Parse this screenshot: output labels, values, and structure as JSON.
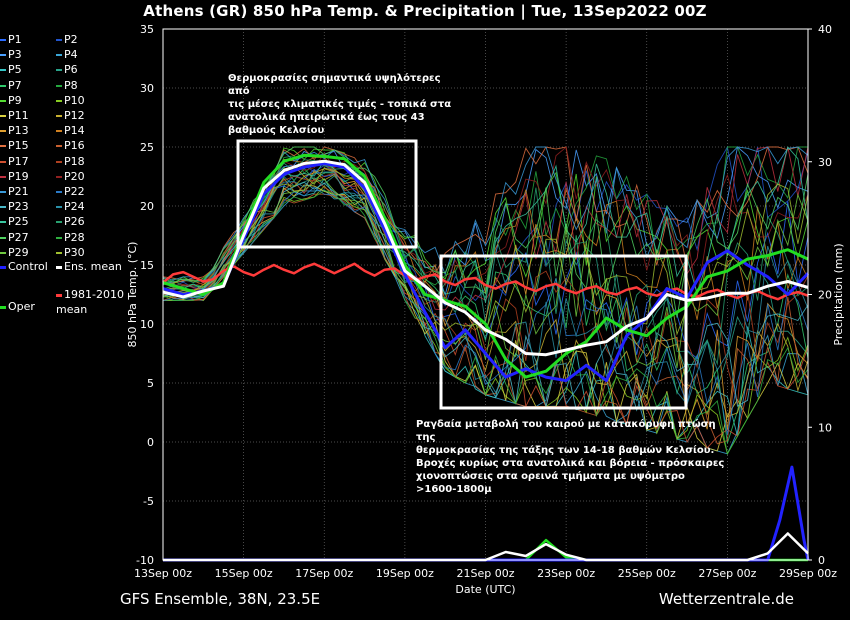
{
  "title": "Athens  (GR)  850 hPa Temp. & Precipitation | Tue, 13Sep2022 00Z",
  "footer_left": "GFS Ensemble, 38N, 23.5E",
  "footer_right": "Wetterzentrale.de",
  "annotations": [
    "Θερμοκρασίες σημαντικά υψηλότερες από\nτις μέσες κλιματικές τιμές - τοπικά στα\nανατολικά ηπειρωτικά έως τους 43\nβαθμούς Κελσίου",
    "Ραγδαία μεταβολή του καιρού με κατακόρυφη πτώση της\nθερμοκρασίας της τάξης των 14-18 βαθμών Κελσίου.\nΒροχές κυρίως στα ανατολικά και βόρεια - πρόσκαιρες\nχιονοπτώσεις στα ορεινά τμήματα με υψόμετρο\n>1600-1800μ"
  ],
  "legend": {
    "members": [
      "P1",
      "P2",
      "P3",
      "P4",
      "P5",
      "P6",
      "P7",
      "P8",
      "P9",
      "P10",
      "P11",
      "P12",
      "P13",
      "P14",
      "P15",
      "P16",
      "P17",
      "P18",
      "P19",
      "P20",
      "P21",
      "P22",
      "P23",
      "P24",
      "P25",
      "P26",
      "P27",
      "P28",
      "P29",
      "P30"
    ],
    "control": "Control",
    "ens_mean": "Ens. mean",
    "climate": "1981-2010\nmean",
    "oper": "Oper"
  },
  "colors": {
    "control": "#2222ff",
    "ens_mean": "#ffffff",
    "climate": "#ff3b3b",
    "oper": "#22dd22",
    "members": [
      "#2b6cff",
      "#2255cc",
      "#4aa0ff",
      "#3aa6d6",
      "#36c6c6",
      "#29a38a",
      "#2fc96b",
      "#25a83f",
      "#55dd33",
      "#88cc22",
      "#d8d040",
      "#c8b030",
      "#e0a030",
      "#d08020",
      "#e07040",
      "#c86030",
      "#d05030",
      "#b04020",
      "#c03040",
      "#902020",
      "#3a9ad8",
      "#2a7ac8",
      "#4ab8c8",
      "#2a90a8",
      "#3ac8a0",
      "#28a070",
      "#50d060",
      "#30b040",
      "#70c840",
      "#a0c030"
    ]
  },
  "chart_data": {
    "type": "line",
    "x_labels": [
      "13Sep 00z",
      "15Sep 00z",
      "17Sep 00z",
      "19Sep 00z",
      "21Sep 00z",
      "23Sep 00z",
      "25Sep 00z",
      "27Sep 00z",
      "29Sep 00z"
    ],
    "xlabel": "Date (UTC)",
    "ylabel_left": "850 hPa Temp. (°C)",
    "ylabel_right": "Precipitation (mm)",
    "ylim_left": [
      -10,
      35
    ],
    "ylim_right": [
      0,
      40
    ],
    "yticks_left": [
      -10,
      -5,
      0,
      5,
      10,
      15,
      20,
      25,
      30,
      35
    ],
    "yticks_right": [
      0,
      10,
      20,
      30,
      40
    ],
    "x_day_range": [
      0,
      16
    ],
    "grid": true,
    "temp": {
      "ens_mean": [
        [
          0,
          12.7
        ],
        [
          0.5,
          12.3
        ],
        [
          1,
          12.8
        ],
        [
          1.5,
          13.2
        ],
        [
          2,
          17.5
        ],
        [
          2.5,
          21.5
        ],
        [
          3,
          23
        ],
        [
          3.5,
          23.6
        ],
        [
          4,
          23.8
        ],
        [
          4.5,
          23.5
        ],
        [
          5,
          22
        ],
        [
          5.5,
          18.5
        ],
        [
          6,
          14.5
        ],
        [
          6.5,
          13.2
        ],
        [
          7,
          11.8
        ],
        [
          7.5,
          11
        ],
        [
          8,
          9.5
        ],
        [
          8.5,
          8.7
        ],
        [
          9,
          7.5
        ],
        [
          9.5,
          7.4
        ],
        [
          10,
          7.8
        ],
        [
          10.5,
          8.2
        ],
        [
          11,
          8.5
        ],
        [
          11.5,
          9.8
        ],
        [
          12,
          10.5
        ],
        [
          12.5,
          12.5
        ],
        [
          13,
          12
        ],
        [
          13.5,
          12.2
        ],
        [
          14,
          12.6
        ],
        [
          14.5,
          12.6
        ],
        [
          15,
          13.2
        ],
        [
          15.5,
          13.6
        ],
        [
          16,
          13.1
        ]
      ],
      "control": [
        [
          0,
          13
        ],
        [
          0.5,
          12.5
        ],
        [
          1,
          12.8
        ],
        [
          1.5,
          13.3
        ],
        [
          2,
          17.2
        ],
        [
          2.5,
          21
        ],
        [
          3,
          22.7
        ],
        [
          3.5,
          23.3
        ],
        [
          4,
          23.6
        ],
        [
          4.5,
          23.3
        ],
        [
          5,
          21.5
        ],
        [
          5.5,
          18
        ],
        [
          6,
          14.2
        ],
        [
          6.5,
          11
        ],
        [
          7,
          8
        ],
        [
          7.5,
          9.5
        ],
        [
          8,
          7.5
        ],
        [
          8.5,
          5.5
        ],
        [
          9,
          6.2
        ],
        [
          9.5,
          5.5
        ],
        [
          10,
          5.2
        ],
        [
          10.5,
          6.5
        ],
        [
          11,
          5.2
        ],
        [
          11.5,
          9
        ],
        [
          12,
          10.5
        ],
        [
          12.5,
          13
        ],
        [
          13,
          12.2
        ],
        [
          13.5,
          15.2
        ],
        [
          14,
          16.2
        ],
        [
          14.5,
          15
        ],
        [
          15,
          14
        ],
        [
          15.5,
          12.5
        ],
        [
          16,
          14.3
        ]
      ],
      "oper": [
        [
          0,
          13.5
        ],
        [
          0.5,
          13
        ],
        [
          1,
          12.5
        ],
        [
          1.5,
          13.5
        ],
        [
          2,
          17.8
        ],
        [
          2.5,
          22
        ],
        [
          3,
          23.8
        ],
        [
          3.5,
          24.3
        ],
        [
          4,
          24.2
        ],
        [
          4.5,
          24
        ],
        [
          5,
          22.5
        ],
        [
          5.5,
          19
        ],
        [
          6,
          15
        ],
        [
          6.5,
          12.5
        ],
        [
          7,
          12
        ],
        [
          7.5,
          11.5
        ],
        [
          8,
          10
        ],
        [
          8.5,
          7
        ],
        [
          9,
          5.5
        ],
        [
          9.5,
          6
        ],
        [
          10,
          7.5
        ],
        [
          10.5,
          8.5
        ],
        [
          11,
          10.5
        ],
        [
          11.5,
          9.5
        ],
        [
          12,
          9
        ],
        [
          12.5,
          10.5
        ],
        [
          13,
          11.5
        ],
        [
          13.5,
          14
        ],
        [
          14,
          14.5
        ],
        [
          14.5,
          15.5
        ],
        [
          15,
          15.8
        ],
        [
          15.5,
          16.3
        ],
        [
          16,
          15.5
        ]
      ],
      "climate": [
        [
          0,
          13.5
        ],
        [
          0.25,
          14.2
        ],
        [
          0.5,
          14.4
        ],
        [
          0.75,
          14
        ],
        [
          1,
          13.6
        ],
        [
          1.25,
          13.8
        ],
        [
          1.5,
          14.5
        ],
        [
          1.75,
          14.9
        ],
        [
          2,
          14.4
        ],
        [
          2.25,
          14.1
        ],
        [
          2.5,
          14.6
        ],
        [
          2.75,
          15
        ],
        [
          3,
          14.6
        ],
        [
          3.25,
          14.3
        ],
        [
          3.5,
          14.8
        ],
        [
          3.75,
          15.1
        ],
        [
          4,
          14.7
        ],
        [
          4.25,
          14.3
        ],
        [
          4.5,
          14.7
        ],
        [
          4.75,
          15.1
        ],
        [
          5,
          14.5
        ],
        [
          5.25,
          14.1
        ],
        [
          5.5,
          14.6
        ],
        [
          5.75,
          14.7
        ],
        [
          6,
          14.1
        ],
        [
          6.25,
          13.7
        ],
        [
          6.5,
          14
        ],
        [
          6.75,
          14.2
        ],
        [
          7,
          13.6
        ],
        [
          7.25,
          13.3
        ],
        [
          7.5,
          13.8
        ],
        [
          7.75,
          13.9
        ],
        [
          8,
          13.3
        ],
        [
          8.25,
          13
        ],
        [
          8.5,
          13.4
        ],
        [
          8.75,
          13.6
        ],
        [
          9,
          13.1
        ],
        [
          9.25,
          12.8
        ],
        [
          9.5,
          13.2
        ],
        [
          9.75,
          13.4
        ],
        [
          10,
          12.9
        ],
        [
          10.25,
          12.6
        ],
        [
          10.5,
          13
        ],
        [
          10.75,
          13.2
        ],
        [
          11,
          12.7
        ],
        [
          11.25,
          12.5
        ],
        [
          11.5,
          12.9
        ],
        [
          11.75,
          13.1
        ],
        [
          12,
          12.6
        ],
        [
          12.25,
          12.4
        ],
        [
          12.5,
          12.8
        ],
        [
          12.75,
          13
        ],
        [
          13,
          12.5
        ],
        [
          13.25,
          12.3
        ],
        [
          13.5,
          12.7
        ],
        [
          13.75,
          12.9
        ],
        [
          14,
          12.5
        ],
        [
          14.25,
          12.2
        ],
        [
          14.5,
          12.6
        ],
        [
          14.75,
          12.8
        ],
        [
          15,
          12.4
        ],
        [
          15.25,
          12.1
        ],
        [
          15.5,
          12.5
        ],
        [
          15.75,
          12.7
        ],
        [
          16,
          12.4
        ]
      ]
    },
    "precip": {
      "ens_mean": [
        [
          0,
          0
        ],
        [
          8,
          0
        ],
        [
          8.5,
          0.6
        ],
        [
          9,
          0.3
        ],
        [
          9.5,
          1.2
        ],
        [
          10,
          0.4
        ],
        [
          10.5,
          0
        ],
        [
          14.5,
          0
        ],
        [
          15,
          0.5
        ],
        [
          15.5,
          2
        ],
        [
          16,
          0.5
        ]
      ],
      "control": [
        [
          0,
          0
        ],
        [
          15,
          0
        ],
        [
          15.3,
          3
        ],
        [
          15.6,
          7
        ],
        [
          15.9,
          1.5
        ],
        [
          16,
          0
        ]
      ],
      "oper": [
        [
          0,
          0
        ],
        [
          9,
          0
        ],
        [
          9.5,
          1.5
        ],
        [
          10,
          0.2
        ],
        [
          10.5,
          0
        ],
        [
          16,
          0
        ]
      ]
    },
    "member_spread": {
      "day": [
        0,
        1,
        2,
        3,
        4,
        5,
        6,
        7,
        8,
        9,
        10,
        11,
        12,
        13,
        14,
        15,
        16
      ],
      "min": [
        12,
        12,
        16,
        20,
        21,
        19,
        12,
        6,
        4,
        3,
        3,
        2,
        1,
        0,
        -1,
        5,
        4
      ],
      "max": [
        14,
        14,
        19,
        25,
        25,
        24,
        18,
        16,
        20,
        25,
        25,
        24,
        21,
        19,
        25,
        25,
        25
      ]
    }
  }
}
